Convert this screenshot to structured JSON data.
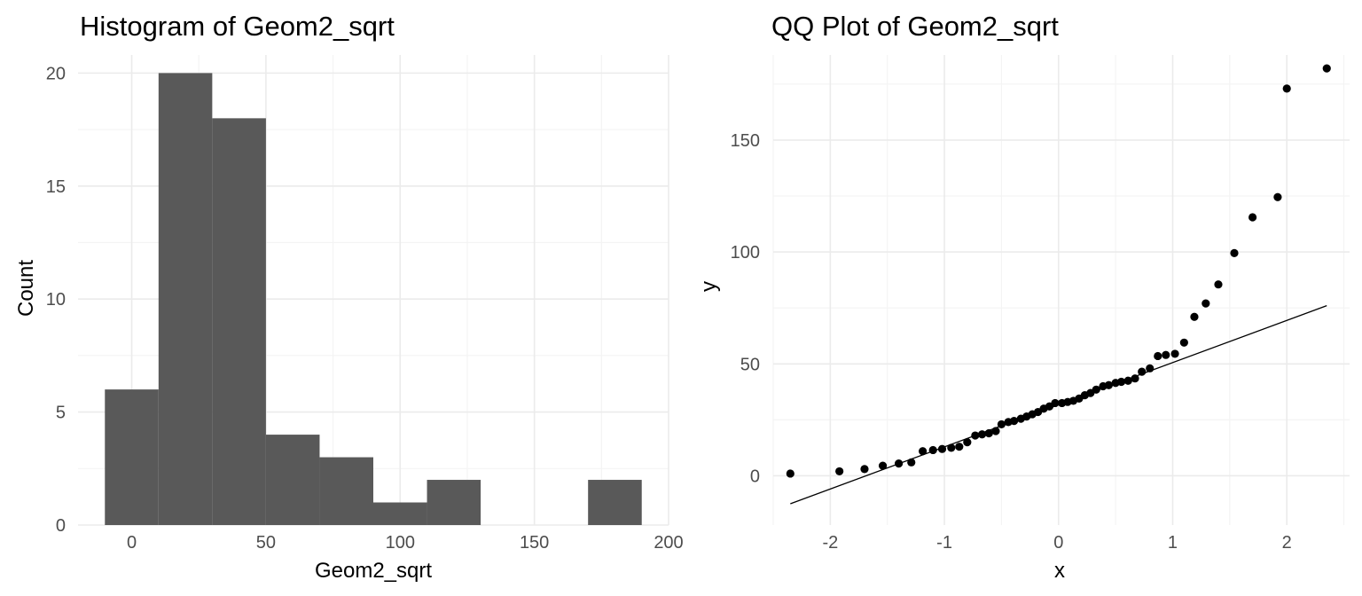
{
  "chart_data": [
    {
      "type": "bar",
      "subtype": "histogram",
      "title": "Histogram of Geom2_sqrt",
      "xlabel": "Geom2_sqrt",
      "ylabel": "Count",
      "xlim": [
        -20,
        200
      ],
      "ylim": [
        0,
        20.8
      ],
      "x_ticks": [
        0,
        50,
        100,
        150,
        200
      ],
      "y_ticks": [
        0,
        5,
        10,
        15,
        20
      ],
      "bar_color": "#595959",
      "bins": [
        {
          "start": -10,
          "end": 10,
          "count": 6
        },
        {
          "start": 10,
          "end": 30,
          "count": 20
        },
        {
          "start": 30,
          "end": 50,
          "count": 18
        },
        {
          "start": 50,
          "end": 70,
          "count": 4
        },
        {
          "start": 70,
          "end": 90,
          "count": 3
        },
        {
          "start": 90,
          "end": 110,
          "count": 1
        },
        {
          "start": 110,
          "end": 130,
          "count": 2
        },
        {
          "start": 130,
          "end": 150,
          "count": 0
        },
        {
          "start": 150,
          "end": 170,
          "count": 0
        },
        {
          "start": 170,
          "end": 190,
          "count": 2
        }
      ]
    },
    {
      "type": "scatter",
      "subtype": "qq-plot",
      "title": "QQ Plot of Geom2_sqrt",
      "xlabel": "x",
      "ylabel": "y",
      "xlim": [
        -2.5,
        2.55
      ],
      "ylim": [
        -22,
        188
      ],
      "x_ticks": [
        -2,
        -1,
        0,
        1,
        2
      ],
      "y_ticks": [
        0,
        50,
        100,
        150
      ],
      "point_color": "#000000",
      "reference_line": {
        "x1": -2.35,
        "y1": -12.5,
        "x2": 2.35,
        "y2": 76
      },
      "points": [
        {
          "x": -2.35,
          "y": 1
        },
        {
          "x": -1.92,
          "y": 2
        },
        {
          "x": -1.7,
          "y": 3
        },
        {
          "x": -1.54,
          "y": 4.5
        },
        {
          "x": -1.4,
          "y": 5.5
        },
        {
          "x": -1.29,
          "y": 6
        },
        {
          "x": -1.19,
          "y": 11
        },
        {
          "x": -1.1,
          "y": 11.5
        },
        {
          "x": -1.02,
          "y": 12
        },
        {
          "x": -0.94,
          "y": 12.5
        },
        {
          "x": -0.87,
          "y": 13
        },
        {
          "x": -0.8,
          "y": 15
        },
        {
          "x": -0.73,
          "y": 18
        },
        {
          "x": -0.67,
          "y": 18.5
        },
        {
          "x": -0.61,
          "y": 19
        },
        {
          "x": -0.55,
          "y": 20
        },
        {
          "x": -0.5,
          "y": 23
        },
        {
          "x": -0.44,
          "y": 24
        },
        {
          "x": -0.39,
          "y": 24.5
        },
        {
          "x": -0.33,
          "y": 25.5
        },
        {
          "x": -0.28,
          "y": 26.5
        },
        {
          "x": -0.23,
          "y": 27.5
        },
        {
          "x": -0.18,
          "y": 28.5
        },
        {
          "x": -0.13,
          "y": 30
        },
        {
          "x": -0.08,
          "y": 31
        },
        {
          "x": -0.03,
          "y": 32.5
        },
        {
          "x": 0.03,
          "y": 32.5
        },
        {
          "x": 0.08,
          "y": 33
        },
        {
          "x": 0.13,
          "y": 33.5
        },
        {
          "x": 0.18,
          "y": 34.5
        },
        {
          "x": 0.23,
          "y": 36
        },
        {
          "x": 0.28,
          "y": 37
        },
        {
          "x": 0.33,
          "y": 38.5
        },
        {
          "x": 0.39,
          "y": 40
        },
        {
          "x": 0.44,
          "y": 40.5
        },
        {
          "x": 0.5,
          "y": 41.5
        },
        {
          "x": 0.55,
          "y": 42
        },
        {
          "x": 0.61,
          "y": 42.5
        },
        {
          "x": 0.67,
          "y": 43.5
        },
        {
          "x": 0.73,
          "y": 46.5
        },
        {
          "x": 0.8,
          "y": 48
        },
        {
          "x": 0.87,
          "y": 53.5
        },
        {
          "x": 0.94,
          "y": 54
        },
        {
          "x": 1.02,
          "y": 54.5
        },
        {
          "x": 1.1,
          "y": 59.5
        },
        {
          "x": 1.19,
          "y": 71
        },
        {
          "x": 1.29,
          "y": 77
        },
        {
          "x": 1.4,
          "y": 85.5
        },
        {
          "x": 1.54,
          "y": 99.5
        },
        {
          "x": 1.7,
          "y": 115.5
        },
        {
          "x": 1.92,
          "y": 124.5
        },
        {
          "x": 2.0,
          "y": 173
        },
        {
          "x": 2.35,
          "y": 182
        }
      ]
    }
  ]
}
